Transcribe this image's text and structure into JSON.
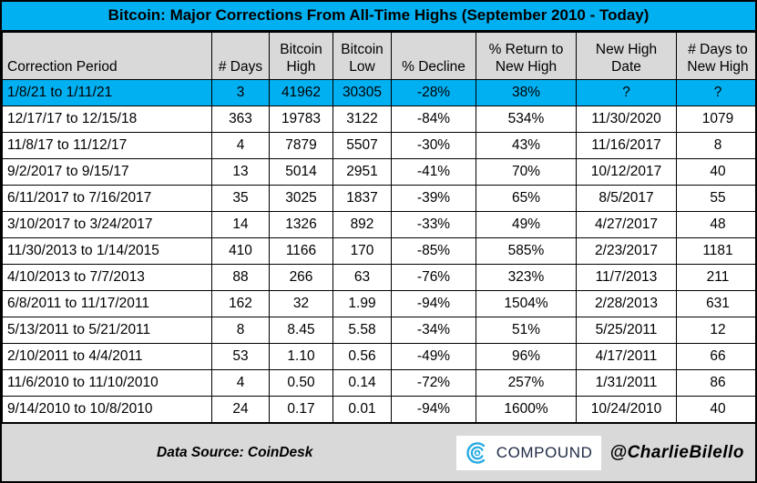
{
  "title": "Bitcoin: Major Corrections From All-Time Highs (September 2010 - Today)",
  "colors": {
    "highlight_cyan": "#00B0F0",
    "header_gray": "#D9D9D9",
    "border_black": "#000000",
    "logo_blue": "#29ABE2",
    "logo_navy": "#1F2A44"
  },
  "chart_data": {
    "type": "table",
    "title": "Bitcoin: Major Corrections From All-Time Highs (September 2010 - Today)",
    "columns": [
      "Correction Period",
      "# Days",
      "Bitcoin High",
      "Bitcoin Low",
      "% Decline",
      "% Return to New High",
      "New High Date",
      "# Days to New High"
    ],
    "rows": [
      [
        "1/8/21 to 1/11/21",
        "3",
        "41962",
        "30305",
        "-28%",
        "38%",
        "?",
        "?"
      ],
      [
        "12/17/17 to 12/15/18",
        "363",
        "19783",
        "3122",
        "-84%",
        "534%",
        "11/30/2020",
        "1079"
      ],
      [
        "11/8/17 to 11/12/17",
        "4",
        "7879",
        "5507",
        "-30%",
        "43%",
        "11/16/2017",
        "8"
      ],
      [
        "9/2/2017 to 9/15/17",
        "13",
        "5014",
        "2951",
        "-41%",
        "70%",
        "10/12/2017",
        "40"
      ],
      [
        "6/11/2017 to 7/16/2017",
        "35",
        "3025",
        "1837",
        "-39%",
        "65%",
        "8/5/2017",
        "55"
      ],
      [
        "3/10/2017 to 3/24/2017",
        "14",
        "1326",
        "892",
        "-33%",
        "49%",
        "4/27/2017",
        "48"
      ],
      [
        "11/30/2013 to 1/14/2015",
        "410",
        "1166",
        "170",
        "-85%",
        "585%",
        "2/23/2017",
        "1181"
      ],
      [
        "4/10/2013 to 7/7/2013",
        "88",
        "266",
        "63",
        "-76%",
        "323%",
        "11/7/2013",
        "211"
      ],
      [
        "6/8/2011 to 11/17/2011",
        "162",
        "32",
        "1.99",
        "-94%",
        "1504%",
        "2/28/2013",
        "631"
      ],
      [
        "5/13/2011 to 5/21/2011",
        "8",
        "8.45",
        "5.58",
        "-34%",
        "51%",
        "5/25/2011",
        "12"
      ],
      [
        "2/10/2011 to 4/4/2011",
        "53",
        "1.10",
        "0.56",
        "-49%",
        "96%",
        "4/17/2011",
        "66"
      ],
      [
        "11/6/2010 to 11/10/2010",
        "4",
        "0.50",
        "0.14",
        "-72%",
        "257%",
        "1/31/2011",
        "86"
      ],
      [
        "9/14/2010 to 10/8/2010",
        "24",
        "0.17",
        "0.01",
        "-94%",
        "1600%",
        "10/24/2010",
        "40"
      ]
    ],
    "highlighted_row_index": 0,
    "legend_position": "none",
    "grid": true
  },
  "footer": {
    "data_source": "Data Source: CoinDesk",
    "logo_text": "COMPOUND",
    "handle": "@CharlieBilello"
  }
}
